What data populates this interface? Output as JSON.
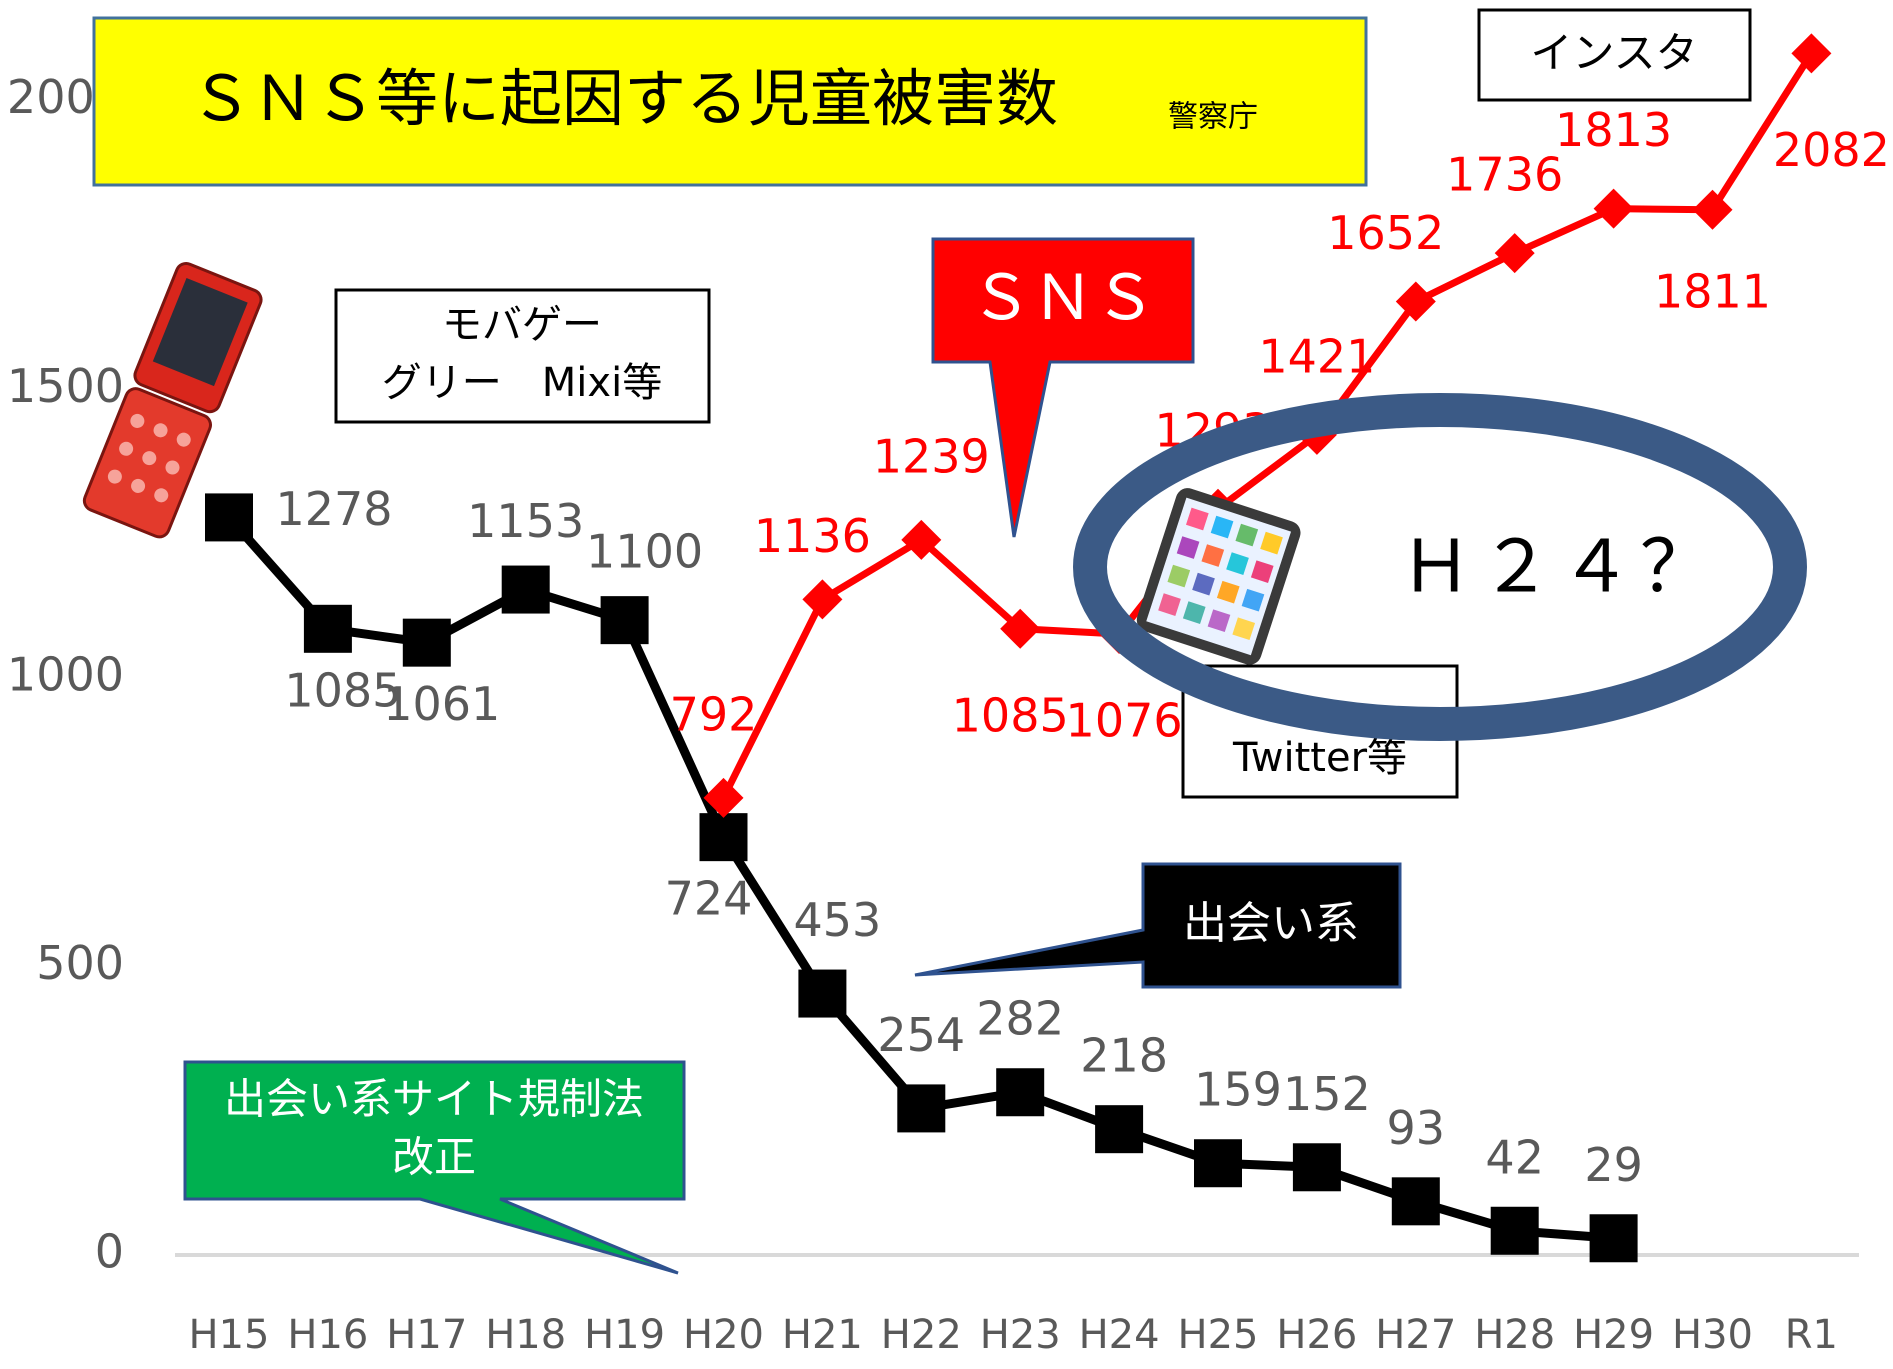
{
  "chart_data": {
    "type": "line",
    "title": "ＳＮＳ等に起因する児童被害数",
    "subtitle": "警察庁",
    "categories": [
      "H15",
      "H16",
      "H17",
      "H18",
      "H19",
      "H20",
      "H21",
      "H22",
      "H23",
      "H24",
      "H25",
      "H26",
      "H27",
      "H28",
      "H29",
      "H30",
      "R1"
    ],
    "series": [
      {
        "name": "出会い系",
        "color": "#000000",
        "marker": "square",
        "label_color": "#595959",
        "values": [
          1278,
          1085,
          1061,
          1153,
          1100,
          724,
          453,
          254,
          282,
          218,
          159,
          152,
          93,
          42,
          29,
          null,
          null
        ]
      },
      {
        "name": "ＳＮＳ",
        "color": "#ff0000",
        "marker": "diamond",
        "label_color": "#ff0000",
        "values": [
          null,
          null,
          null,
          null,
          null,
          792,
          1136,
          1239,
          1085,
          1076,
          1293,
          1421,
          1652,
          1736,
          1813,
          1811,
          2082
        ]
      }
    ],
    "ylim": [
      0,
      2100
    ],
    "yticks": [
      0,
      500,
      1000,
      1500,
      2000
    ],
    "grid": false,
    "annotations": {
      "insta": "インスタ",
      "mobage": [
        "モバゲー",
        "グリー　Mixi等"
      ],
      "twitter": "Twitter等",
      "h24": "Ｈ２４？",
      "law": [
        "出会い系サイト規制法",
        "改正"
      ]
    }
  }
}
